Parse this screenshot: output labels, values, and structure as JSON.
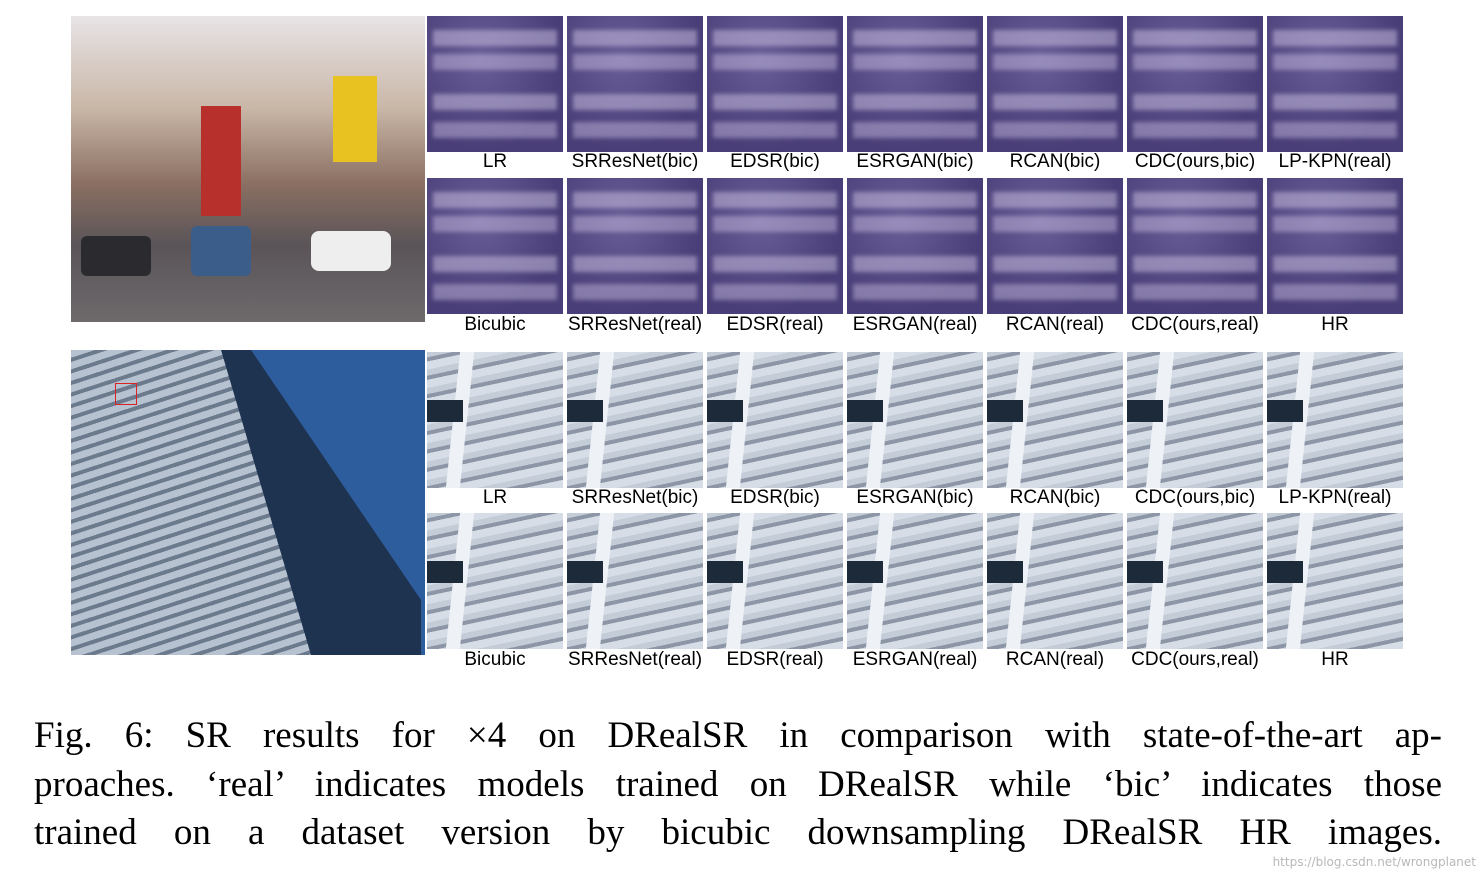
{
  "figure": {
    "panels": [
      {
        "rows": [
          {
            "labels": [
              "LR",
              "SRResNet(bic)",
              "EDSR(bic)",
              "ESRGAN(bic)",
              "RCAN(bic)",
              "CDC(ours,bic)",
              "LP-KPN(real)"
            ]
          },
          {
            "labels": [
              "Bicubic",
              "SRResNet(real)",
              "EDSR(real)",
              "ESRGAN(real)",
              "RCAN(real)",
              "CDC(ours,real)",
              "HR"
            ]
          }
        ]
      },
      {
        "rows": [
          {
            "labels": [
              "LR",
              "SRResNet(bic)",
              "EDSR(bic)",
              "ESRGAN(bic)",
              "RCAN(bic)",
              "CDC(ours,bic)",
              "LP-KPN(real)"
            ]
          },
          {
            "labels": [
              "Bicubic",
              "SRResNet(real)",
              "EDSR(real)",
              "ESRGAN(real)",
              "RCAN(real)",
              "CDC(ours,real)",
              "HR"
            ]
          }
        ]
      }
    ],
    "caption": [
      "Fig. 6: SR results for ×4 on DRealSR in comparison with state-of-the-art ap-",
      "proaches. ‘real’ indicates models trained on DRealSR while ‘bic’ indicates those",
      "trained on a dataset version by bicubic downsampling DRealSR HR images."
    ],
    "watermark": "https://blog.csdn.net/wrongplanet"
  }
}
